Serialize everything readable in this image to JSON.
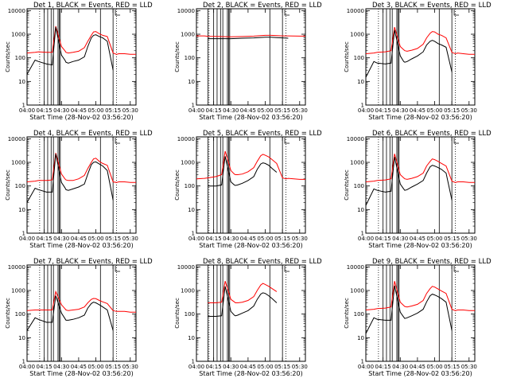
{
  "chart_data": [
    {
      "type": "line",
      "title": "Det 1, BLACK = Events, RED = LLD",
      "xlabel": "Start Time (28-Nov-02 03:56:20)",
      "ylabel": "Counts/sec",
      "x_ticks": [
        "04:00",
        "04:15",
        "04:30",
        "04:45",
        "05:00",
        "05:15",
        "05:30"
      ],
      "y_ticks": [
        "1",
        "10",
        "100",
        "1000",
        "10000"
      ],
      "y_scale": "log",
      "ylim": [
        1,
        12000
      ],
      "x_minutes": [
        0,
        7,
        10,
        17,
        22,
        25,
        30,
        33,
        34,
        36,
        40,
        45,
        50,
        53,
        56,
        58,
        60,
        63,
        66,
        70,
        75,
        78,
        80,
        85,
        90,
        95
      ],
      "series": [
        {
          "name": "LLD",
          "color": "#ff0000",
          "values": [
            160,
            170,
            180,
            170,
            170,
            2200,
            300,
            200,
            170,
            160,
            170,
            190,
            270,
            500,
            900,
            1250,
            1300,
            1050,
            900,
            800,
            160,
            140,
            150,
            150,
            140,
            140
          ]
        },
        {
          "name": "Events",
          "color": "#000000",
          "values": [
            20,
            80,
            70,
            55,
            50,
            2000,
            130,
            80,
            65,
            60,
            70,
            80,
            110,
            300,
            700,
            900,
            950,
            800,
            700,
            500,
            30,
            null,
            null,
            null,
            null,
            null
          ]
        }
      ],
      "vlines": [
        15,
        18,
        21,
        23,
        27,
        28,
        29,
        64,
        75
      ],
      "boxes": [
        [
          17,
          100,
          19,
          100
        ],
        [
          28,
          100,
          30,
          100
        ]
      ]
    },
    {
      "type": "line",
      "title": "Det 2, BLACK = Events, RED = LLD",
      "xlabel": "Start Time (28-Nov-02 03:56:20)",
      "ylabel": "Counts/sec",
      "x_ticks": [
        "04:00",
        "04:15",
        "04:30",
        "04:45",
        "05:00",
        "05:15",
        "05:30"
      ],
      "y_ticks": [
        "1",
        "10",
        "100",
        "1000",
        "10000"
      ],
      "y_scale": "log",
      "ylim": [
        1,
        12000
      ],
      "x_minutes": [
        0,
        7,
        10,
        20,
        30,
        40,
        50,
        60,
        65,
        70,
        75,
        80,
        85,
        90,
        95
      ],
      "series": [
        {
          "name": "LLD",
          "color": "#ff0000",
          "values": [
            850,
            850,
            820,
            800,
            780,
            800,
            830,
            900,
            900,
            880,
            850,
            850,
            840,
            830,
            830
          ]
        },
        {
          "name": "Events",
          "color": "#000000",
          "values": [
            null,
            null,
            650,
            650,
            650,
            680,
            700,
            750,
            750,
            720,
            700,
            680,
            null,
            null,
            null
          ]
        }
      ],
      "vlines": [
        10,
        15,
        18,
        21,
        23,
        27,
        28,
        29,
        64,
        75
      ],
      "boxes": []
    },
    {
      "type": "line",
      "title": "Det 3, BLACK = Events, RED = LLD",
      "xlabel": "Start Time (28-Nov-02 03:56:20)",
      "ylabel": "Counts/sec",
      "x_ticks": [
        "04:00",
        "04:15",
        "04:30",
        "04:45",
        "05:00",
        "05:15",
        "05:30"
      ],
      "y_ticks": [
        "1",
        "10",
        "100",
        "1000",
        "10000"
      ],
      "y_scale": "log",
      "ylim": [
        1,
        12000
      ],
      "x_minutes": [
        0,
        7,
        10,
        17,
        22,
        25,
        30,
        33,
        34,
        36,
        40,
        45,
        50,
        53,
        56,
        58,
        60,
        63,
        66,
        70,
        75,
        78,
        80,
        85,
        90,
        95
      ],
      "series": [
        {
          "name": "LLD",
          "color": "#ff0000",
          "values": [
            150,
            160,
            170,
            180,
            200,
            2000,
            300,
            220,
            200,
            190,
            210,
            250,
            380,
            700,
            1100,
            1300,
            1250,
            1000,
            900,
            700,
            170,
            150,
            160,
            150,
            140,
            140
          ]
        },
        {
          "name": "Events",
          "color": "#000000",
          "values": [
            15,
            70,
            60,
            55,
            60,
            1500,
            120,
            70,
            65,
            70,
            90,
            120,
            180,
            350,
            500,
            550,
            500,
            400,
            350,
            280,
            25,
            null,
            null,
            null,
            null,
            null
          ]
        }
      ],
      "vlines": [
        15,
        18,
        21,
        23,
        27,
        28,
        29,
        64,
        75
      ],
      "boxes": [
        [
          17,
          100,
          19,
          100
        ],
        [
          28,
          100,
          30,
          100
        ]
      ]
    },
    {
      "type": "line",
      "title": "Det 4, BLACK = Events, RED = LLD",
      "xlabel": "Start Time (28-Nov-02 03:56:20)",
      "ylabel": "Counts/sec",
      "x_ticks": [
        "04:00",
        "04:15",
        "04:30",
        "04:45",
        "05:00",
        "05:15",
        "05:30"
      ],
      "y_ticks": [
        "1",
        "10",
        "100",
        "1000",
        "10000"
      ],
      "y_scale": "log",
      "ylim": [
        1,
        12000
      ],
      "x_minutes": [
        0,
        7,
        10,
        17,
        22,
        25,
        30,
        33,
        34,
        36,
        40,
        45,
        50,
        53,
        56,
        58,
        60,
        63,
        66,
        70,
        75,
        78,
        80,
        85,
        90,
        95
      ],
      "series": [
        {
          "name": "LLD",
          "color": "#ff0000",
          "values": [
            150,
            160,
            170,
            170,
            180,
            2500,
            320,
            200,
            180,
            170,
            170,
            200,
            280,
            550,
            1000,
            1400,
            1500,
            1100,
            900,
            750,
            150,
            140,
            150,
            150,
            140,
            140
          ]
        },
        {
          "name": "Events",
          "color": "#000000",
          "values": [
            20,
            80,
            70,
            55,
            55,
            2300,
            140,
            85,
            70,
            65,
            75,
            90,
            120,
            320,
            800,
            1000,
            1050,
            850,
            700,
            450,
            25,
            null,
            null,
            null,
            null,
            null
          ]
        }
      ],
      "vlines": [
        15,
        18,
        21,
        23,
        27,
        28,
        29,
        64,
        75
      ],
      "boxes": [
        [
          17,
          100,
          19,
          100
        ],
        [
          28,
          100,
          30,
          100
        ]
      ]
    },
    {
      "type": "line",
      "title": "Det 5, BLACK = Events, RED = LLD",
      "xlabel": "Start Time (28-Nov-02 03:56:20)",
      "ylabel": "Counts/sec",
      "x_ticks": [
        "04:00",
        "04:15",
        "04:30",
        "04:45",
        "05:00",
        "05:15",
        "05:30"
      ],
      "y_ticks": [
        "1",
        "10",
        "100",
        "1000",
        "10000"
      ],
      "y_scale": "log",
      "ylim": [
        1,
        12000
      ],
      "x_minutes": [
        0,
        7,
        10,
        17,
        22,
        25,
        30,
        33,
        34,
        36,
        40,
        45,
        50,
        53,
        56,
        58,
        60,
        63,
        66,
        70,
        75,
        78,
        80,
        85,
        90,
        95
      ],
      "series": [
        {
          "name": "LLD",
          "color": "#ff0000",
          "values": [
            200,
            210,
            220,
            250,
            300,
            3000,
            450,
            320,
            300,
            300,
            320,
            400,
            600,
            1100,
            1900,
            2200,
            2000,
            1700,
            1300,
            900,
            220,
            200,
            210,
            200,
            190,
            190
          ]
        },
        {
          "name": "Events",
          "color": "#000000",
          "values": [
            null,
            null,
            100,
            100,
            110,
            1800,
            150,
            110,
            105,
            110,
            130,
            170,
            250,
            500,
            850,
            950,
            900,
            750,
            550,
            380,
            null,
            null,
            null,
            null,
            null,
            null
          ]
        }
      ],
      "vlines": [
        10,
        15,
        18,
        21,
        23,
        27,
        28,
        29,
        64,
        75
      ],
      "boxes": []
    },
    {
      "type": "line",
      "title": "Det 6, BLACK = Events, RED = LLD",
      "xlabel": "Start Time (28-Nov-02 03:56:20)",
      "ylabel": "Counts/sec",
      "x_ticks": [
        "04:00",
        "04:15",
        "04:30",
        "04:45",
        "05:00",
        "05:15",
        "05:30"
      ],
      "y_ticks": [
        "1",
        "10",
        "100",
        "1000",
        "10000"
      ],
      "y_scale": "log",
      "ylim": [
        1,
        12000
      ],
      "x_minutes": [
        0,
        7,
        10,
        17,
        22,
        25,
        30,
        33,
        34,
        36,
        40,
        45,
        50,
        53,
        56,
        58,
        60,
        63,
        66,
        70,
        75,
        78,
        80,
        85,
        90,
        95
      ],
      "series": [
        {
          "name": "LLD",
          "color": "#ff0000",
          "values": [
            150,
            160,
            170,
            180,
            200,
            2300,
            300,
            220,
            200,
            190,
            210,
            250,
            350,
            700,
            1100,
            1400,
            1300,
            1100,
            900,
            700,
            160,
            140,
            150,
            150,
            140,
            140
          ]
        },
        {
          "name": "Events",
          "color": "#000000",
          "values": [
            15,
            75,
            65,
            55,
            60,
            1700,
            120,
            75,
            65,
            70,
            90,
            120,
            170,
            350,
            650,
            750,
            700,
            600,
            500,
            350,
            25,
            null,
            null,
            null,
            null,
            null
          ]
        }
      ],
      "vlines": [
        15,
        18,
        21,
        23,
        27,
        28,
        29,
        64,
        75
      ],
      "boxes": [
        [
          17,
          100,
          19,
          100
        ],
        [
          28,
          100,
          30,
          100
        ]
      ]
    },
    {
      "type": "line",
      "title": "Det 7, BLACK = Events, RED = LLD",
      "xlabel": "Start Time (28-Nov-02 03:56:20)",
      "ylabel": "Counts/sec",
      "x_ticks": [
        "04:00",
        "04:15",
        "04:30",
        "04:45",
        "05:00",
        "05:15",
        "05:30"
      ],
      "y_ticks": [
        "1",
        "10",
        "100",
        "1000",
        "10000"
      ],
      "y_scale": "log",
      "ylim": [
        1,
        12000
      ],
      "x_minutes": [
        0,
        7,
        10,
        17,
        22,
        25,
        30,
        33,
        34,
        36,
        40,
        45,
        50,
        53,
        56,
        58,
        60,
        63,
        66,
        70,
        75,
        78,
        80,
        85,
        90,
        95
      ],
      "series": [
        {
          "name": "LLD",
          "color": "#ff0000",
          "values": [
            140,
            150,
            150,
            150,
            150,
            900,
            250,
            170,
            150,
            140,
            150,
            160,
            200,
            300,
            420,
            460,
            450,
            380,
            330,
            280,
            140,
            130,
            130,
            130,
            120,
            120
          ]
        },
        {
          "name": "Events",
          "color": "#000000",
          "values": [
            20,
            70,
            60,
            45,
            45,
            600,
            110,
            65,
            55,
            55,
            60,
            70,
            90,
            180,
            280,
            320,
            300,
            250,
            200,
            150,
            20,
            null,
            null,
            null,
            null,
            null
          ]
        }
      ],
      "vlines": [
        15,
        18,
        21,
        23,
        27,
        28,
        29,
        64,
        75
      ],
      "boxes": [
        [
          17,
          100,
          19,
          100
        ],
        [
          28,
          100,
          30,
          100
        ]
      ]
    },
    {
      "type": "line",
      "title": "Det 8, BLACK = Events, RED = LLD",
      "xlabel": "Start Time (28-Nov-02 03:56:20)",
      "ylabel": "Counts/sec",
      "x_ticks": [
        "04:00",
        "04:15",
        "04:30",
        "04:45",
        "05:00",
        "05:15",
        "05:30"
      ],
      "y_ticks": [
        "1",
        "10",
        "100",
        "1000",
        "10000"
      ],
      "y_scale": "log",
      "ylim": [
        1,
        12000
      ],
      "x_minutes": [
        0,
        7,
        10,
        17,
        22,
        25,
        30,
        33,
        34,
        36,
        40,
        45,
        50,
        53,
        56,
        58,
        60,
        63,
        66,
        70,
        75,
        78,
        80,
        85,
        90,
        95
      ],
      "series": [
        {
          "name": "LLD",
          "color": "#ff0000",
          "values": [
            null,
            null,
            300,
            300,
            320,
            2500,
            420,
            330,
            300,
            300,
            320,
            380,
            550,
            1000,
            1700,
            2000,
            1800,
            1500,
            1200,
            900,
            null,
            null,
            null,
            null,
            null,
            null
          ]
        },
        {
          "name": "Events",
          "color": "#000000",
          "values": [
            null,
            null,
            80,
            80,
            85,
            1500,
            130,
            90,
            85,
            90,
            110,
            140,
            220,
            420,
            700,
            800,
            750,
            600,
            450,
            300,
            null,
            null,
            null,
            null,
            null,
            null
          ]
        }
      ],
      "vlines": [
        10,
        15,
        18,
        21,
        23,
        27,
        28,
        29,
        64,
        75
      ],
      "boxes": []
    },
    {
      "type": "line",
      "title": "Det 9, BLACK = Events, RED = LLD",
      "xlabel": "Start Time (28-Nov-02 03:56:20)",
      "ylabel": "Counts/sec",
      "x_ticks": [
        "04:00",
        "04:15",
        "04:30",
        "04:45",
        "05:00",
        "05:15",
        "05:30"
      ],
      "y_ticks": [
        "1",
        "10",
        "100",
        "1000",
        "10000"
      ],
      "y_scale": "log",
      "ylim": [
        1,
        12000
      ],
      "x_minutes": [
        0,
        7,
        10,
        17,
        22,
        25,
        30,
        33,
        34,
        36,
        40,
        45,
        50,
        53,
        56,
        58,
        60,
        63,
        66,
        70,
        75,
        78,
        80,
        85,
        90,
        95
      ],
      "series": [
        {
          "name": "LLD",
          "color": "#ff0000",
          "values": [
            150,
            160,
            170,
            180,
            200,
            2500,
            320,
            230,
            210,
            200,
            220,
            260,
            380,
            750,
            1200,
            1500,
            1400,
            1150,
            950,
            750,
            160,
            140,
            150,
            150,
            140,
            140
          ]
        },
        {
          "name": "Events",
          "color": "#000000",
          "values": [
            15,
            70,
            60,
            55,
            55,
            1600,
            120,
            75,
            65,
            70,
            85,
            110,
            160,
            330,
            600,
            700,
            650,
            550,
            450,
            320,
            20,
            null,
            null,
            null,
            null,
            null
          ]
        }
      ],
      "vlines": [
        15,
        18,
        21,
        23,
        27,
        28,
        29,
        64,
        75
      ],
      "boxes": [
        [
          17,
          100,
          19,
          100
        ],
        [
          28,
          100,
          30,
          100
        ]
      ]
    }
  ]
}
